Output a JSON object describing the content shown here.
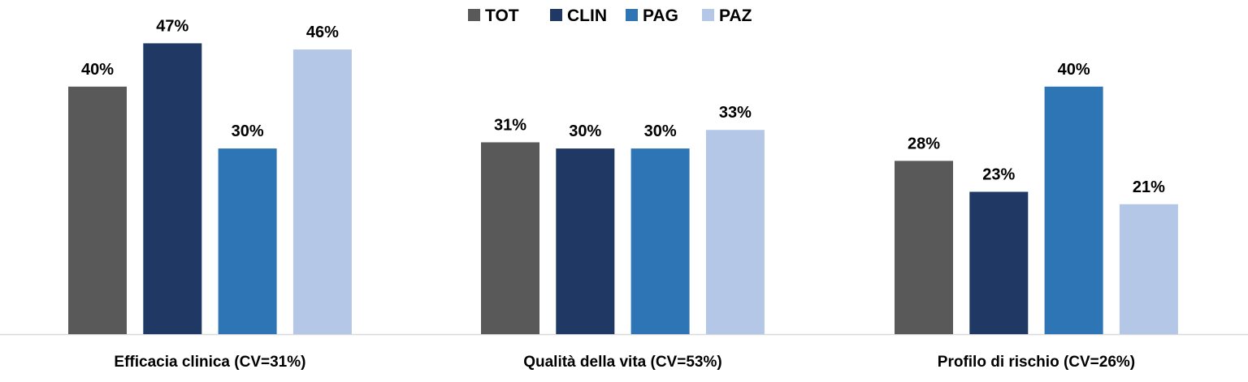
{
  "chart_data": {
    "type": "bar",
    "categories": [
      "Efficacia clinica (CV=31%)",
      "Qualità della vita (CV=53%)",
      "Profilo di rischio (CV=26%)"
    ],
    "series": [
      {
        "name": "TOT",
        "color": "#595959",
        "values": [
          40,
          31,
          28
        ]
      },
      {
        "name": "CLIN",
        "color": "#1f3864",
        "values": [
          47,
          30,
          23
        ]
      },
      {
        "name": "PAG",
        "color": "#2e75b6",
        "values": [
          30,
          30,
          40
        ]
      },
      {
        "name": "PAZ",
        "color": "#b4c7e7",
        "values": [
          46,
          33,
          21
        ]
      }
    ],
    "value_suffix": "%",
    "ylim": [
      0,
      54
    ],
    "grid": false,
    "legend": "top-center",
    "data_labels": true
  }
}
